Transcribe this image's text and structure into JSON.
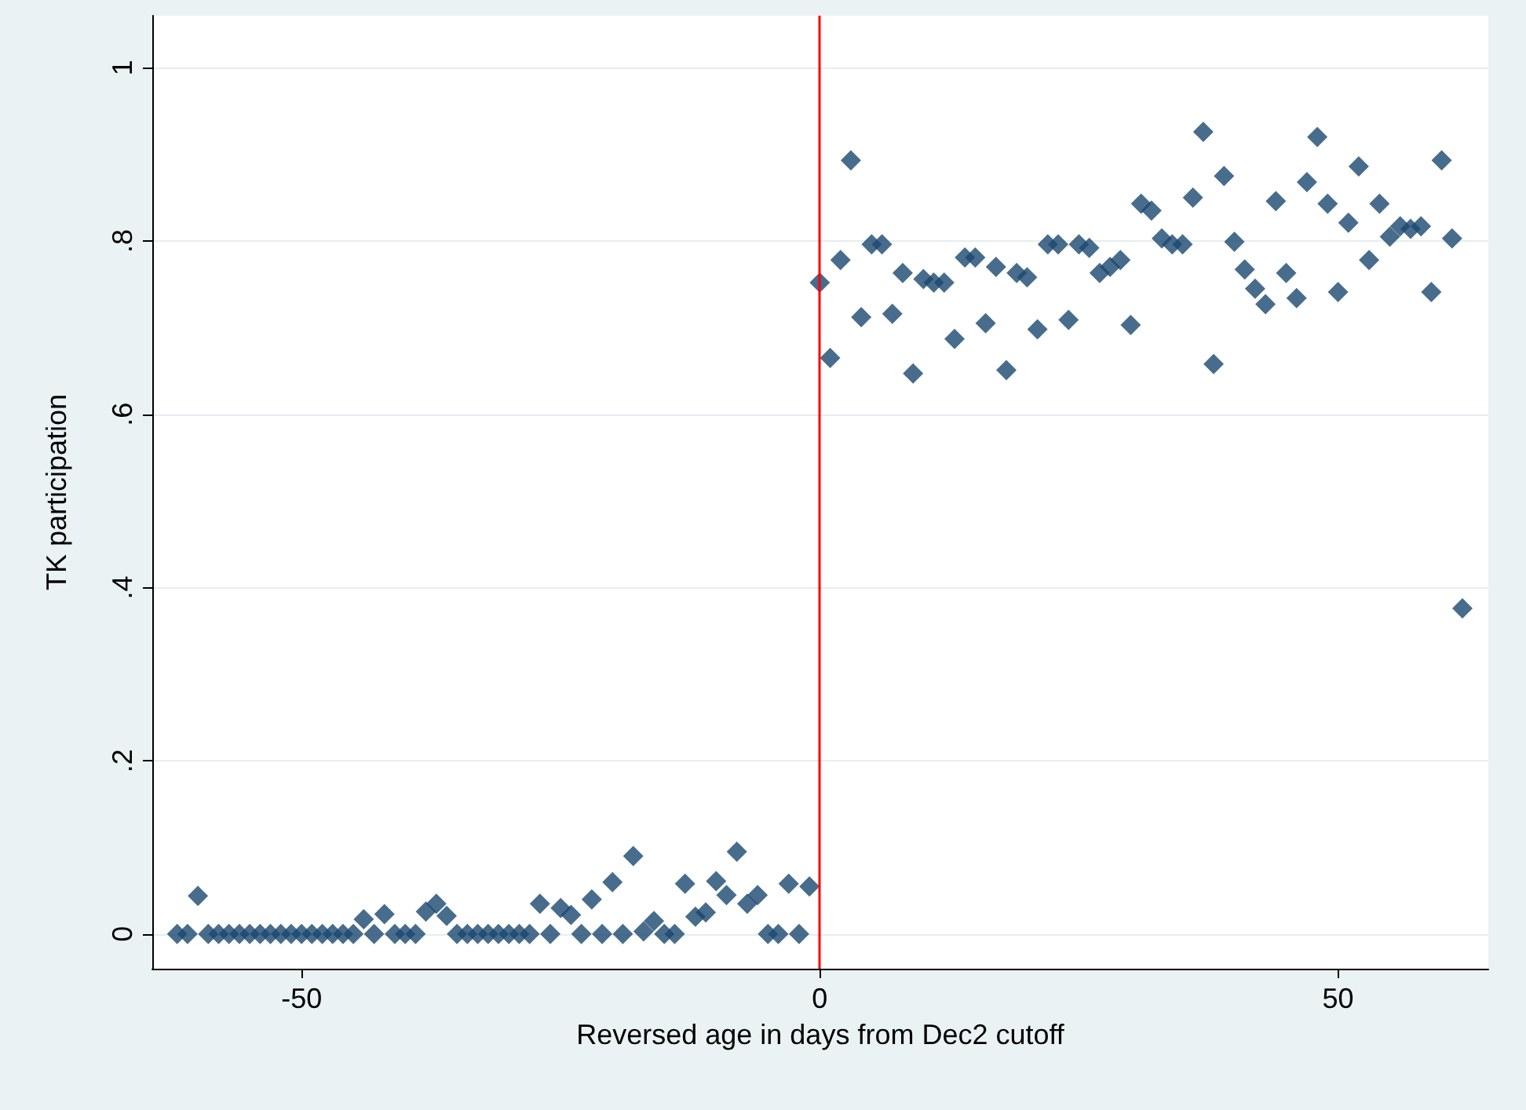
{
  "chart_data": {
    "type": "scatter",
    "xlabel": "Reversed age in days from Dec2 cutoff",
    "ylabel": "TK participation",
    "x": [
      -62,
      -61,
      -60,
      -59,
      -58,
      -57,
      -56,
      -55,
      -54,
      -53,
      -52,
      -51,
      -50,
      -49,
      -48,
      -47,
      -46,
      -45,
      -44,
      -43,
      -42,
      -41,
      -40,
      -39,
      -38,
      -37,
      -36,
      -35,
      -34,
      -33,
      -32,
      -31,
      -30,
      -29,
      -28,
      -27,
      -26,
      -25,
      -24,
      -23,
      -22,
      -21,
      -20,
      -19,
      -18,
      -17,
      -16,
      -15,
      -14,
      -13,
      -12,
      -11,
      -10,
      -9,
      -8,
      -7,
      -6,
      -5,
      -4,
      -3,
      -2,
      -1,
      0,
      1,
      2,
      3,
      4,
      5,
      6,
      7,
      8,
      9,
      10,
      11,
      12,
      13,
      14,
      15,
      16,
      17,
      18,
      19,
      20,
      21,
      22,
      23,
      24,
      25,
      26,
      27,
      28,
      29,
      30,
      31,
      32,
      33,
      34,
      35,
      36,
      37,
      38,
      39,
      40,
      41,
      42,
      43,
      44,
      45,
      46,
      47,
      48,
      49,
      50,
      51,
      52,
      53,
      54,
      55,
      56,
      57,
      58,
      59,
      60,
      61,
      62
    ],
    "series": [
      {
        "color": "#1a476f",
        "values": [
          0,
          0,
          0.044,
          0,
          0,
          0,
          0,
          0,
          0,
          0,
          0,
          0,
          0,
          0,
          0,
          0,
          0,
          0,
          0.017,
          0,
          0.023,
          0,
          0,
          0,
          0.026,
          0.035,
          0.021,
          0,
          0,
          0,
          0,
          0,
          0,
          0,
          0,
          0.035,
          0,
          0.03,
          0.022,
          0,
          0.04,
          0,
          0.06,
          0,
          0.09,
          0.003,
          0.015,
          0,
          0,
          0.058,
          0.02,
          0.025,
          0.061,
          0.045,
          0.095,
          0.035,
          0.045,
          0,
          0,
          0.058,
          0,
          0.055,
          0.752,
          0.665,
          0.778,
          0.893,
          0.712,
          0.796,
          0.796,
          0.716,
          0.763,
          0.647,
          0.756,
          0.752,
          0.752,
          0.687,
          0.781,
          0.781,
          0.705,
          0.77,
          0.651,
          0.763,
          0.758,
          0.698,
          0.796,
          0.796,
          0.709,
          0.796,
          0.792,
          0.763,
          0.77,
          0.778,
          0.703,
          0.843,
          0.835,
          0.803,
          0.796,
          0.796,
          0.85,
          0.926,
          0.658,
          0.875,
          0.799,
          0.767,
          0.745,
          0.727,
          0.846,
          0.763,
          0.734,
          0.868,
          0.92,
          0.843,
          0.741,
          0.821,
          0.886,
          0.778,
          0.843,
          0.805,
          0.817,
          0.814,
          0.817,
          0.741,
          0.893,
          0.803,
          0.376
        ]
      }
    ],
    "xlim": [
      -64.4,
      64.5
    ],
    "xticks": [
      -50,
      0,
      50
    ],
    "ylim": [
      -0.04,
      1.06
    ],
    "yticks": [
      {
        "value": 0,
        "label": "0"
      },
      {
        "value": 0.2,
        "label": ".2"
      },
      {
        "value": 0.4,
        "label": ".4"
      },
      {
        "value": 0.6,
        "label": ".6"
      },
      {
        "value": 0.8,
        "label": ".8"
      },
      {
        "value": 1,
        "label": "1"
      }
    ],
    "grid": "y",
    "marker": "diamond",
    "ref_lines": [
      {
        "axis": "x",
        "value": 0,
        "color": "#ff0000"
      }
    ]
  }
}
